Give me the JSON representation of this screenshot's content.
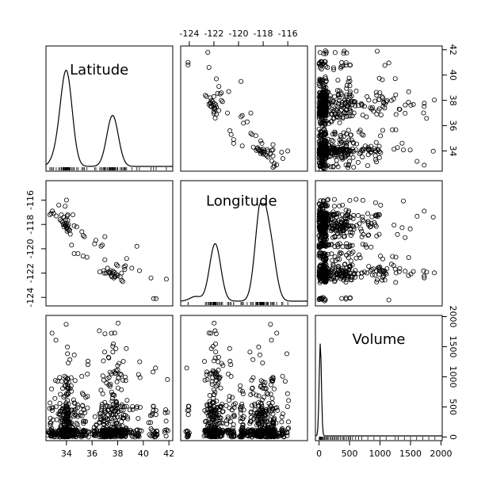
{
  "chart_data": {
    "type": "scatter",
    "variables": [
      {
        "name": "Latitude",
        "range": [
          32.4,
          42.3
        ],
        "ticks": [
          34,
          36,
          38,
          40,
          42
        ]
      },
      {
        "name": "Longitude",
        "range": [
          -124.7,
          -114.4
        ],
        "ticks": [
          -124,
          -122,
          -120,
          -118,
          -116
        ]
      },
      {
        "name": "Volume",
        "range": [
          -60,
          2020
        ],
        "ticks": [
          0,
          500,
          1000,
          1500,
          2000
        ]
      }
    ],
    "density_peaks": {
      "Latitude": [
        [
          34.0,
          1.0
        ],
        [
          37.6,
          0.55
        ],
        [
          33.3,
          0.12
        ]
      ],
      "Longitude": [
        [
          -121.9,
          0.62
        ],
        [
          -118.2,
          1.0
        ],
        [
          -117.4,
          0.55
        ],
        [
          -123.5,
          0.05
        ]
      ],
      "Volume": [
        [
          20,
          1.0
        ]
      ]
    },
    "lat_lon_points": [
      [
        34.05,
        -118.25
      ],
      [
        34.1,
        -118.4
      ],
      [
        33.9,
        -118.1
      ],
      [
        34.0,
        -117.9
      ],
      [
        34.2,
        -118.5
      ],
      [
        33.7,
        -117.8
      ],
      [
        33.8,
        -118.2
      ],
      [
        34.15,
        -118.0
      ],
      [
        33.95,
        -117.6
      ],
      [
        34.05,
        -117.3
      ],
      [
        33.2,
        -117.3
      ],
      [
        32.8,
        -117.1
      ],
      [
        32.7,
        -117.2
      ],
      [
        33.0,
        -117.1
      ],
      [
        32.9,
        -116.9
      ],
      [
        33.5,
        -117.6
      ],
      [
        33.6,
        -117.7
      ],
      [
        34.4,
        -119.7
      ],
      [
        34.3,
        -118.8
      ],
      [
        34.5,
        -117.2
      ],
      [
        34.1,
        -117.2
      ],
      [
        33.9,
        -116.5
      ],
      [
        34.0,
        -116.0
      ],
      [
        34.6,
        -118.1
      ],
      [
        35.4,
        -119.0
      ],
      [
        35.3,
        -118.9
      ],
      [
        36.7,
        -119.8
      ],
      [
        36.8,
        -119.7
      ],
      [
        36.6,
        -121.9
      ],
      [
        36.9,
        -121.8
      ],
      [
        37.3,
        -121.9
      ],
      [
        37.4,
        -121.95
      ],
      [
        37.35,
        -122.0
      ],
      [
        37.5,
        -122.2
      ],
      [
        37.55,
        -122.3
      ],
      [
        37.7,
        -122.4
      ],
      [
        37.8,
        -122.3
      ],
      [
        37.8,
        -122.25
      ],
      [
        37.9,
        -122.1
      ],
      [
        38.0,
        -122.2
      ],
      [
        37.6,
        -122.05
      ],
      [
        37.65,
        -121.85
      ],
      [
        37.75,
        -121.95
      ],
      [
        37.45,
        -121.8
      ],
      [
        37.9,
        -121.3
      ],
      [
        38.0,
        -121.4
      ],
      [
        38.5,
        -121.5
      ],
      [
        38.6,
        -121.4
      ],
      [
        38.55,
        -121.7
      ],
      [
        38.3,
        -122.0
      ],
      [
        38.2,
        -122.3
      ],
      [
        38.4,
        -122.7
      ],
      [
        38.3,
        -122.6
      ],
      [
        39.1,
        -121.6
      ],
      [
        39.7,
        -121.8
      ],
      [
        40.6,
        -122.4
      ],
      [
        40.8,
        -124.1
      ],
      [
        41.0,
        -124.1
      ],
      [
        37.1,
        -122.0
      ],
      [
        36.95,
        -122.0
      ],
      [
        37.2,
        -121.6
      ],
      [
        37.0,
        -120.9
      ],
      [
        36.3,
        -119.3
      ],
      [
        36.2,
        -119.6
      ],
      [
        35.6,
        -120.7
      ],
      [
        35.3,
        -120.6
      ],
      [
        34.9,
        -120.4
      ],
      [
        34.6,
        -120.4
      ],
      [
        33.8,
        -117.4
      ],
      [
        33.6,
        -117.2
      ],
      [
        34.1,
        -118.15
      ],
      [
        34.0,
        -118.3
      ],
      [
        33.85,
        -117.95
      ],
      [
        34.25,
        -118.45
      ],
      [
        33.95,
        -118.05
      ],
      [
        34.05,
        -118.55
      ],
      [
        34.1,
        -117.65
      ],
      [
        33.75,
        -118.0
      ],
      [
        41.8,
        -122.5
      ],
      [
        39.5,
        -119.8
      ],
      [
        38.7,
        -120.8
      ],
      [
        37.0,
        -119.0
      ],
      [
        35.2,
        -118.6
      ],
      [
        34.8,
        -118.2
      ],
      [
        33.4,
        -116.4
      ]
    ],
    "volume_values": [
      5,
      8,
      12,
      20,
      35,
      50,
      80,
      120,
      150,
      200,
      240,
      280,
      320,
      380,
      420,
      480,
      520,
      600,
      650,
      700,
      800,
      900,
      1000,
      1100,
      1250,
      1400,
      1600,
      1800,
      1900,
      3,
      15,
      25,
      45,
      60,
      90,
      110,
      140,
      180,
      220,
      260,
      300,
      350,
      400,
      450,
      500,
      550,
      1700,
      1500,
      1300
    ]
  }
}
